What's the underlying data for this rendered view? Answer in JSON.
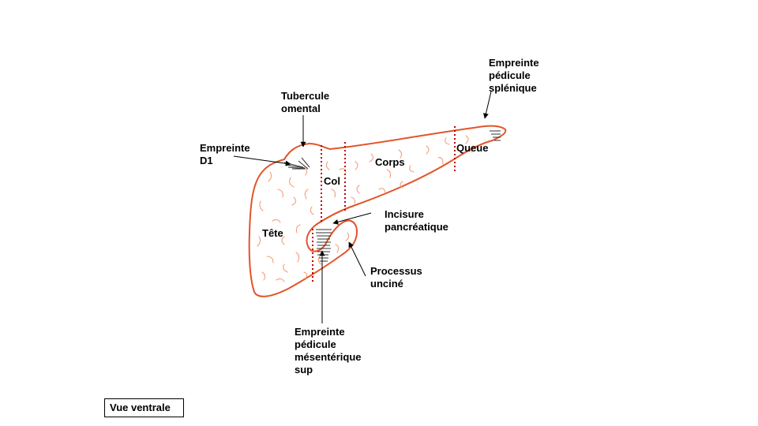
{
  "diagram": {
    "colors": {
      "outline": "#E2552A",
      "texture": "#F2A07A",
      "separator": "#C00000",
      "hatch": "#333333",
      "arrow": "#000000"
    },
    "regions": {
      "head": "Tête",
      "neck": "Col",
      "body": "Corps",
      "tail": "Queue"
    },
    "annotations": {
      "splenic_imprint": "Empreinte\npédicule\nsplénique",
      "omental_tuber": "Tubercule\nomental",
      "d1_imprint": "Empreinte\nD1",
      "pancreatic_notch": "Incisure\npancréatique",
      "uncinate_process": "Processus\nunciné",
      "sma_imprint": "Empreinte\npédicule\nmésentérique\nsup"
    },
    "view_label": "Vue ventrale"
  }
}
